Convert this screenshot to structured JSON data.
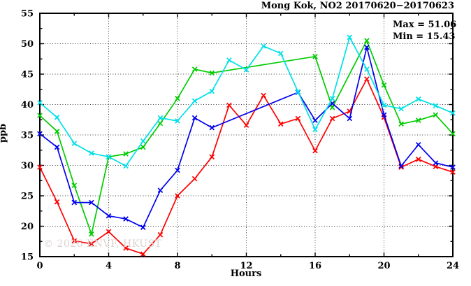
{
  "title": "Mong Kok, NO2 20170620−20170623",
  "annotations": {
    "max_label": "Max = 51.06",
    "min_label": "Min = 15.43"
  },
  "watermark": "© 2026 ENVF, HKUST",
  "axes": {
    "xlabel": "Hours",
    "ylabel": "ppb"
  },
  "chart_data": {
    "type": "line",
    "title": "Mong Kok, NO2 20170620−20170623",
    "xlabel": "Hours",
    "ylabel": "ppb",
    "xlim": [
      0,
      24
    ],
    "ylim": [
      15,
      55
    ],
    "xticks": [
      0,
      4,
      8,
      12,
      16,
      20,
      24
    ],
    "yticks": [
      15,
      20,
      25,
      30,
      35,
      40,
      45,
      50,
      55
    ],
    "x_minor_step": 2,
    "y_minor_step": 2.5,
    "grid": true,
    "legend": "none",
    "stat_max": 51.06,
    "stat_min": 15.43,
    "marker": "x",
    "series": [
      {
        "name": "day-1-red",
        "color": "#ff0000",
        "points": [
          [
            0,
            29.7
          ],
          [
            1,
            24.0
          ],
          [
            2,
            17.6
          ],
          [
            3,
            17.1
          ],
          [
            4,
            19.1
          ],
          [
            5,
            16.4
          ],
          [
            6,
            15.43
          ],
          [
            7,
            18.6
          ],
          [
            8,
            25.0
          ],
          [
            9,
            27.8
          ],
          [
            10,
            31.4
          ],
          [
            11,
            39.9
          ],
          [
            12,
            36.6
          ],
          [
            13,
            41.5
          ],
          [
            14,
            36.8
          ],
          [
            15,
            37.7
          ],
          [
            16,
            32.4
          ],
          [
            17,
            37.7
          ],
          [
            18,
            38.9
          ],
          [
            19,
            44.2
          ],
          [
            20,
            37.9
          ],
          [
            21,
            29.7
          ],
          [
            22,
            31.0
          ],
          [
            23,
            29.8
          ],
          [
            24,
            28.9
          ]
        ]
      },
      {
        "name": "day-2-green",
        "color": "#00cc00",
        "points": [
          [
            0,
            38.2
          ],
          [
            1,
            35.6
          ],
          [
            2,
            26.7
          ],
          [
            3,
            18.7
          ],
          [
            4,
            31.4
          ],
          [
            5,
            31.9
          ],
          [
            6,
            33.0
          ],
          [
            7,
            36.9
          ],
          [
            8,
            41.0
          ],
          [
            9,
            45.8
          ],
          [
            10,
            45.2
          ],
          [
            16,
            47.9
          ],
          [
            17,
            39.5
          ],
          [
            19,
            50.5
          ],
          [
            20,
            43.2
          ],
          [
            21,
            36.8
          ],
          [
            22,
            37.4
          ],
          [
            23,
            38.3
          ],
          [
            24,
            35.2
          ]
        ]
      },
      {
        "name": "day-3-blue",
        "color": "#0000ee",
        "points": [
          [
            0,
            35.2
          ],
          [
            1,
            33.0
          ],
          [
            2,
            23.9
          ],
          [
            3,
            23.9
          ],
          [
            4,
            21.7
          ],
          [
            5,
            21.2
          ],
          [
            6,
            19.8
          ],
          [
            7,
            25.9
          ],
          [
            8,
            29.2
          ],
          [
            9,
            37.8
          ],
          [
            10,
            36.2
          ],
          [
            15,
            42.0
          ],
          [
            16,
            37.4
          ],
          [
            17,
            40.2
          ],
          [
            18,
            37.7
          ],
          [
            19,
            49.4
          ],
          [
            20,
            38.3
          ],
          [
            21,
            29.9
          ],
          [
            22,
            33.4
          ],
          [
            23,
            30.4
          ],
          [
            24,
            29.7
          ]
        ]
      },
      {
        "name": "day-4-cyan",
        "color": "#00e0e8",
        "points": [
          [
            0,
            40.3
          ],
          [
            1,
            37.9
          ],
          [
            2,
            33.6
          ],
          [
            3,
            32.0
          ],
          [
            4,
            31.4
          ],
          [
            5,
            29.9
          ],
          [
            6,
            34.0
          ],
          [
            7,
            37.8
          ],
          [
            8,
            37.3
          ],
          [
            9,
            40.6
          ],
          [
            10,
            42.2
          ],
          [
            11,
            47.3
          ],
          [
            12,
            45.7
          ],
          [
            13,
            49.6
          ],
          [
            14,
            48.4
          ],
          [
            15,
            42.1
          ],
          [
            16,
            35.9
          ],
          [
            17,
            41.0
          ],
          [
            18,
            51.06
          ],
          [
            19,
            45.8
          ],
          [
            20,
            39.9
          ],
          [
            21,
            39.3
          ],
          [
            22,
            40.9
          ],
          [
            23,
            39.8
          ],
          [
            24,
            38.6
          ]
        ]
      }
    ]
  }
}
